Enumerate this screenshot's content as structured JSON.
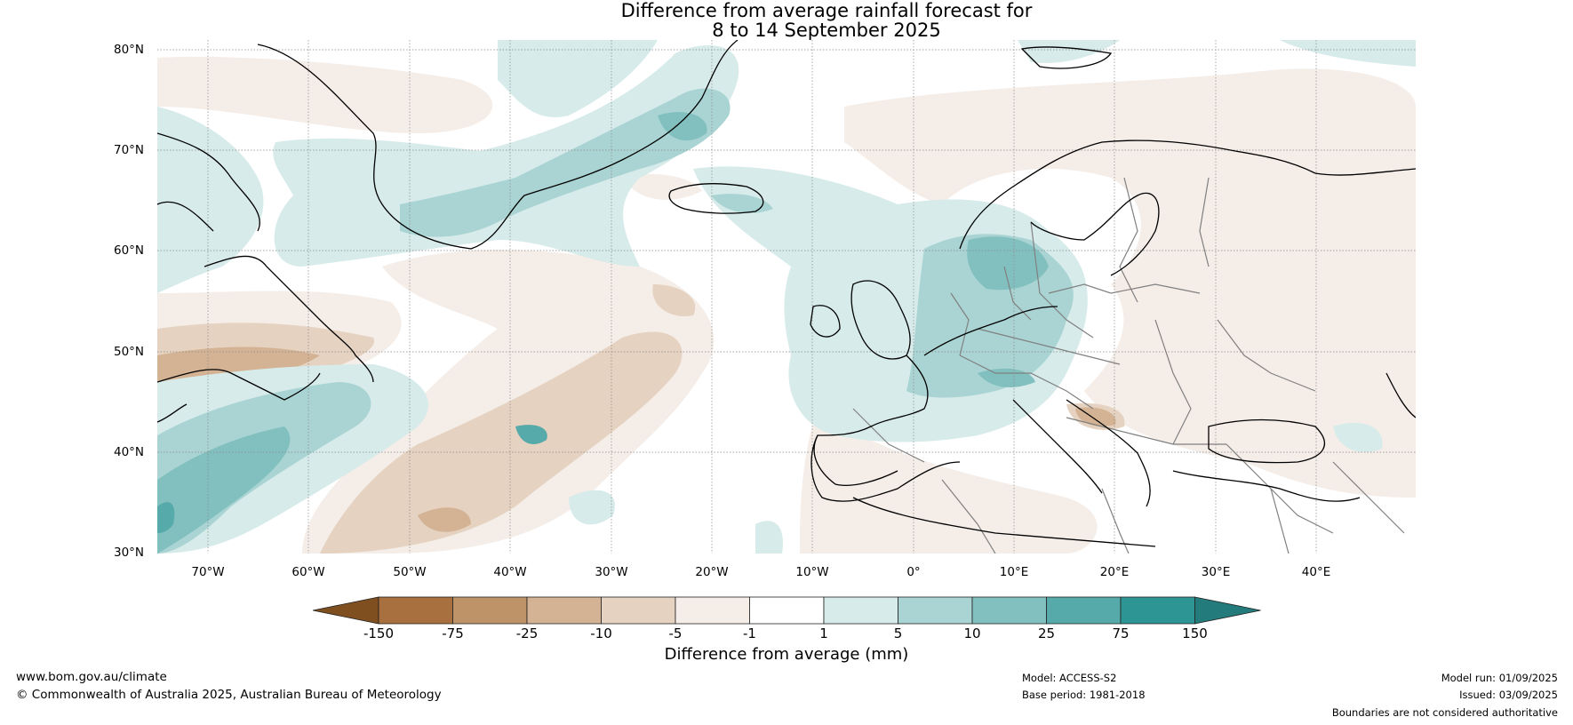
{
  "title": {
    "line1": "Difference from average rainfall forecast for",
    "line2": "8 to 14 September 2025"
  },
  "map": {
    "lat_labels": [
      "80°N",
      "70°N",
      "60°N",
      "50°N",
      "40°N",
      "30°N"
    ],
    "lon_labels": [
      "70°W",
      "60°W",
      "50°W",
      "40°W",
      "30°W",
      "20°W",
      "10°W",
      "0°",
      "10°E",
      "20°E",
      "30°E",
      "40°E"
    ],
    "region": "North Atlantic and Europe",
    "lat_range": [
      30,
      80
    ],
    "lon_range": [
      -75,
      50
    ],
    "land_outline_color": "#000000",
    "border_color": "#808080"
  },
  "colorbar": {
    "ticks": [
      "-150",
      "-75",
      "-25",
      "-10",
      "-5",
      "-1",
      "1",
      "5",
      "10",
      "25",
      "75",
      "150"
    ],
    "colors": [
      "#7f4f1f",
      "#a8703e",
      "#bf9368",
      "#d4b394",
      "#e5d2c0",
      "#f4ede8",
      "#ffffff",
      "#d6ebea",
      "#a9d4d3",
      "#82c0bf",
      "#56aaaa",
      "#2e9595",
      "#247b7b"
    ],
    "label": "Difference from average (mm)"
  },
  "footer": {
    "website": "www.bom.gov.au/climate",
    "copyright": "© Commonwealth of Australia 2025, Australian Bureau of Meteorology",
    "model": "Model: ACCESS-S2",
    "base_period": "Base period: 1981-2018",
    "model_run": "Model run: 01/09/2025",
    "issued": "Issued: 03/09/2025",
    "boundaries": "Boundaries are not considered authoritative"
  }
}
